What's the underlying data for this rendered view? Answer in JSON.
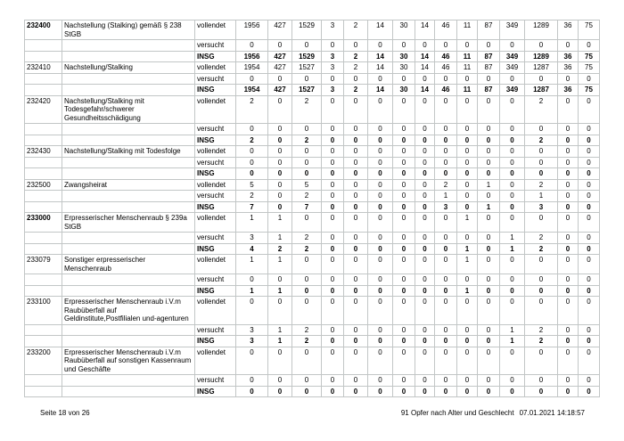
{
  "table": {
    "status_column_labels": [
      "vollendet",
      "versucht",
      "INSG"
    ],
    "sections": [
      {
        "code": "232400",
        "bold": true,
        "description": "Nachstellung (Stalking) gemäß § 238 StGB",
        "rows": [
          {
            "status": "vollendet",
            "values": [
              1956,
              427,
              1529,
              3,
              2,
              14,
              30,
              14,
              46,
              11,
              87,
              349,
              1289,
              36,
              75
            ]
          },
          {
            "status": "versucht",
            "values": [
              0,
              0,
              0,
              0,
              0,
              0,
              0,
              0,
              0,
              0,
              0,
              0,
              0,
              0,
              0
            ]
          },
          {
            "status": "INSG",
            "values": [
              1956,
              427,
              1529,
              3,
              2,
              14,
              30,
              14,
              46,
              11,
              87,
              349,
              1289,
              36,
              75
            ]
          }
        ]
      },
      {
        "code": "232410",
        "bold": false,
        "description": "Nachstellung/Stalking",
        "rows": [
          {
            "status": "vollendet",
            "values": [
              1954,
              427,
              1527,
              3,
              2,
              14,
              30,
              14,
              46,
              11,
              87,
              349,
              1287,
              36,
              75
            ]
          },
          {
            "status": "versucht",
            "values": [
              0,
              0,
              0,
              0,
              0,
              0,
              0,
              0,
              0,
              0,
              0,
              0,
              0,
              0,
              0
            ]
          },
          {
            "status": "INSG",
            "values": [
              1954,
              427,
              1527,
              3,
              2,
              14,
              30,
              14,
              46,
              11,
              87,
              349,
              1287,
              36,
              75
            ]
          }
        ]
      },
      {
        "code": "232420",
        "bold": false,
        "description": "Nachstellung/Stalking mit Todesgefahr/schwerer Gesundheitsschädigung",
        "rows": [
          {
            "status": "vollendet",
            "values": [
              2,
              0,
              2,
              0,
              0,
              0,
              0,
              0,
              0,
              0,
              0,
              0,
              2,
              0,
              0
            ]
          },
          {
            "status": "versucht",
            "values": [
              0,
              0,
              0,
              0,
              0,
              0,
              0,
              0,
              0,
              0,
              0,
              0,
              0,
              0,
              0
            ]
          },
          {
            "status": "INSG",
            "values": [
              2,
              0,
              2,
              0,
              0,
              0,
              0,
              0,
              0,
              0,
              0,
              0,
              2,
              0,
              0
            ]
          }
        ]
      },
      {
        "code": "232430",
        "bold": false,
        "description": "Nachstellung/Stalking mit Todesfolge",
        "rows": [
          {
            "status": "vollendet",
            "values": [
              0,
              0,
              0,
              0,
              0,
              0,
              0,
              0,
              0,
              0,
              0,
              0,
              0,
              0,
              0
            ]
          },
          {
            "status": "versucht",
            "values": [
              0,
              0,
              0,
              0,
              0,
              0,
              0,
              0,
              0,
              0,
              0,
              0,
              0,
              0,
              0
            ]
          },
          {
            "status": "INSG",
            "values": [
              0,
              0,
              0,
              0,
              0,
              0,
              0,
              0,
              0,
              0,
              0,
              0,
              0,
              0,
              0
            ]
          }
        ]
      },
      {
        "code": "232500",
        "bold": false,
        "description": "Zwangsheirat",
        "rows": [
          {
            "status": "vollendet",
            "values": [
              5,
              0,
              5,
              0,
              0,
              0,
              0,
              0,
              2,
              0,
              1,
              0,
              2,
              0,
              0
            ]
          },
          {
            "status": "versucht",
            "values": [
              2,
              0,
              2,
              0,
              0,
              0,
              0,
              0,
              1,
              0,
              0,
              0,
              1,
              0,
              0
            ]
          },
          {
            "status": "INSG",
            "values": [
              7,
              0,
              7,
              0,
              0,
              0,
              0,
              0,
              3,
              0,
              1,
              0,
              3,
              0,
              0
            ]
          }
        ]
      },
      {
        "code": "233000",
        "bold": true,
        "description": "Erpresserischer Menschenraub § 239a StGB",
        "rows": [
          {
            "status": "vollendet",
            "values": [
              1,
              1,
              0,
              0,
              0,
              0,
              0,
              0,
              0,
              1,
              0,
              0,
              0,
              0,
              0
            ]
          },
          {
            "status": "versucht",
            "values": [
              3,
              1,
              2,
              0,
              0,
              0,
              0,
              0,
              0,
              0,
              0,
              1,
              2,
              0,
              0
            ]
          },
          {
            "status": "INSG",
            "values": [
              4,
              2,
              2,
              0,
              0,
              0,
              0,
              0,
              0,
              1,
              0,
              1,
              2,
              0,
              0
            ]
          }
        ]
      },
      {
        "code": "233079",
        "bold": false,
        "description": "Sonstiger erpresserischer Menschenraub",
        "rows": [
          {
            "status": "vollendet",
            "values": [
              1,
              1,
              0,
              0,
              0,
              0,
              0,
              0,
              0,
              1,
              0,
              0,
              0,
              0,
              0
            ]
          },
          {
            "status": "versucht",
            "values": [
              0,
              0,
              0,
              0,
              0,
              0,
              0,
              0,
              0,
              0,
              0,
              0,
              0,
              0,
              0
            ]
          },
          {
            "status": "INSG",
            "values": [
              1,
              1,
              0,
              0,
              0,
              0,
              0,
              0,
              0,
              1,
              0,
              0,
              0,
              0,
              0
            ]
          }
        ]
      },
      {
        "code": "233100",
        "bold": false,
        "description": "Erpresserischer Menschenraub i.V.m Raubüberfall auf Geldinstitute,Postfilialen und-agenturen",
        "rows": [
          {
            "status": "vollendet",
            "values": [
              0,
              0,
              0,
              0,
              0,
              0,
              0,
              0,
              0,
              0,
              0,
              0,
              0,
              0,
              0
            ]
          },
          {
            "status": "versucht",
            "values": [
              3,
              1,
              2,
              0,
              0,
              0,
              0,
              0,
              0,
              0,
              0,
              1,
              2,
              0,
              0
            ]
          },
          {
            "status": "INSG",
            "values": [
              3,
              1,
              2,
              0,
              0,
              0,
              0,
              0,
              0,
              0,
              0,
              1,
              2,
              0,
              0
            ]
          }
        ]
      },
      {
        "code": "233200",
        "bold": false,
        "description": "Erpresserischer Menschenraub i.V.m Raubüberfall auf sonstigen Kassenraum und Geschäfte",
        "rows": [
          {
            "status": "vollendet",
            "values": [
              0,
              0,
              0,
              0,
              0,
              0,
              0,
              0,
              0,
              0,
              0,
              0,
              0,
              0,
              0
            ]
          },
          {
            "status": "versucht",
            "values": [
              0,
              0,
              0,
              0,
              0,
              0,
              0,
              0,
              0,
              0,
              0,
              0,
              0,
              0,
              0
            ]
          },
          {
            "status": "INSG",
            "values": [
              0,
              0,
              0,
              0,
              0,
              0,
              0,
              0,
              0,
              0,
              0,
              0,
              0,
              0,
              0
            ]
          }
        ]
      }
    ]
  },
  "footer": {
    "left": "Seite 18 von 26",
    "title": "91 Opfer nach Alter und Geschlecht",
    "datetime": "07.01.2021 14:18:57"
  }
}
